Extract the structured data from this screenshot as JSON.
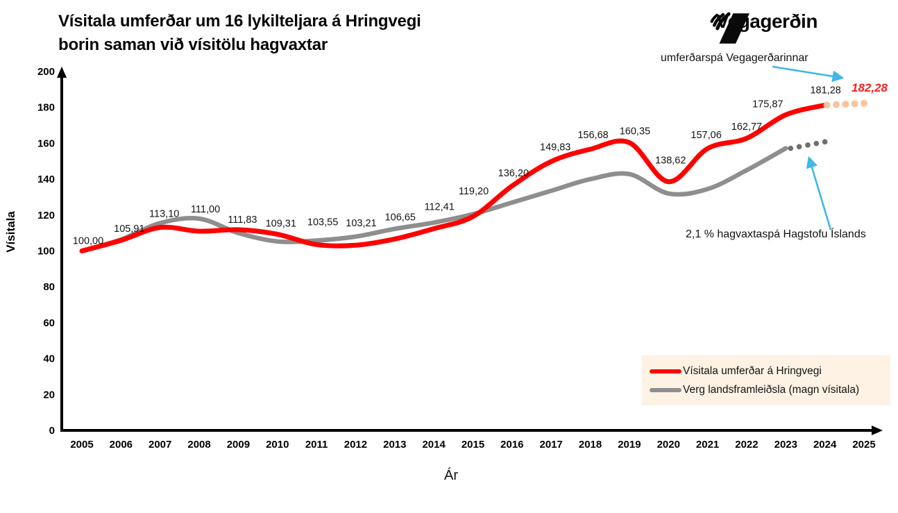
{
  "header": {
    "title_line1": "Vísitala umferðar um 16 lykilteljara á Hringvegi",
    "title_line2": "borin saman við vísitölu hagvaxtar",
    "logo_text": "Vegagerðin"
  },
  "annotations": {
    "traffic_forecast_note": "umferðarspá Vegagerðarinnar",
    "gdp_forecast_note": "2,1 % hagvaxtaspá Hagstofu Íslands"
  },
  "axes": {
    "y_axis_title": "Vísitala",
    "x_axis_title": "Ár"
  },
  "legend": {
    "items": [
      {
        "label": "Vísitala umferðar á Hringvegi",
        "color": "#ff0000"
      },
      {
        "label": "Verg landsframleiðsla (magn vísitala)",
        "color": "#8e8e8e"
      }
    ]
  },
  "colors": {
    "traffic_line": "#ff0000",
    "gdp_line": "#8e8e8e",
    "traffic_forecast_dots": "#f8c49e",
    "gdp_forecast_dots": "#6e6e6e",
    "arrow_blue": "#3eb7e9",
    "legend_background": "#fdf2e4"
  },
  "chart_data": {
    "type": "line",
    "title": "Vísitala umferðar um 16 lykilteljara á Hringvegi borin saman við vísitölu hagvaxtar",
    "xlabel": "Ár",
    "ylabel": "Vísitala",
    "x": [
      2005,
      2006,
      2007,
      2008,
      2009,
      2010,
      2011,
      2012,
      2013,
      2014,
      2015,
      2016,
      2017,
      2018,
      2019,
      2020,
      2021,
      2022,
      2023,
      2024,
      2025
    ],
    "ylim": [
      0,
      200
    ],
    "yticks": [
      0,
      20,
      40,
      60,
      80,
      100,
      120,
      140,
      160,
      180,
      200
    ],
    "grid": false,
    "legend_position": "bottom-right",
    "series": [
      {
        "name": "Vísitala umferðar á Hringvegi",
        "color": "#ff0000",
        "years": [
          2005,
          2006,
          2007,
          2008,
          2009,
          2010,
          2011,
          2012,
          2013,
          2014,
          2015,
          2016,
          2017,
          2018,
          2019,
          2020,
          2021,
          2022,
          2023,
          2024
        ],
        "values": [
          100.0,
          105.91,
          113.1,
          111.0,
          111.83,
          109.31,
          103.55,
          103.21,
          106.65,
          112.41,
          119.2,
          136.2,
          149.83,
          156.68,
          160.35,
          138.62,
          157.06,
          162.77,
          175.87,
          181.28
        ],
        "value_labels": [
          "100,00",
          "105,91",
          "113,10",
          "111,00",
          "111,83",
          "109,31",
          "103,55",
          "103,21",
          "106,65",
          "112,41",
          "119,20",
          "136,20",
          "149,83",
          "156,68",
          "160,35",
          "138,62",
          "157,06",
          "162,77",
          "175,87",
          "181,28"
        ],
        "forecast": {
          "year": 2025,
          "value": 182.28,
          "label": "182,28",
          "style": "dotted",
          "dot_color": "#f8c49e",
          "note": "umferðarspá Vegagerðarinnar"
        }
      },
      {
        "name": "Verg landsframleiðsla (magn vísitala)",
        "color": "#8e8e8e",
        "years": [
          2005,
          2006,
          2007,
          2008,
          2009,
          2010,
          2011,
          2012,
          2013,
          2014,
          2015,
          2016,
          2017,
          2018,
          2019,
          2020,
          2021,
          2022,
          2023
        ],
        "values": [
          100.0,
          106.3,
          115.5,
          118.0,
          110.0,
          105.3,
          105.8,
          108.0,
          112.3,
          115.8,
          120.5,
          127.0,
          133.5,
          140.0,
          142.8,
          132.0,
          134.5,
          145.0,
          157.2
        ],
        "values_estimated": true,
        "forecast": {
          "year": 2024,
          "value": 160.8,
          "style": "dotted",
          "dot_color": "#6e6e6e",
          "note": "2,1 % hagvaxtaspá Hagstofu Íslands"
        }
      }
    ]
  }
}
